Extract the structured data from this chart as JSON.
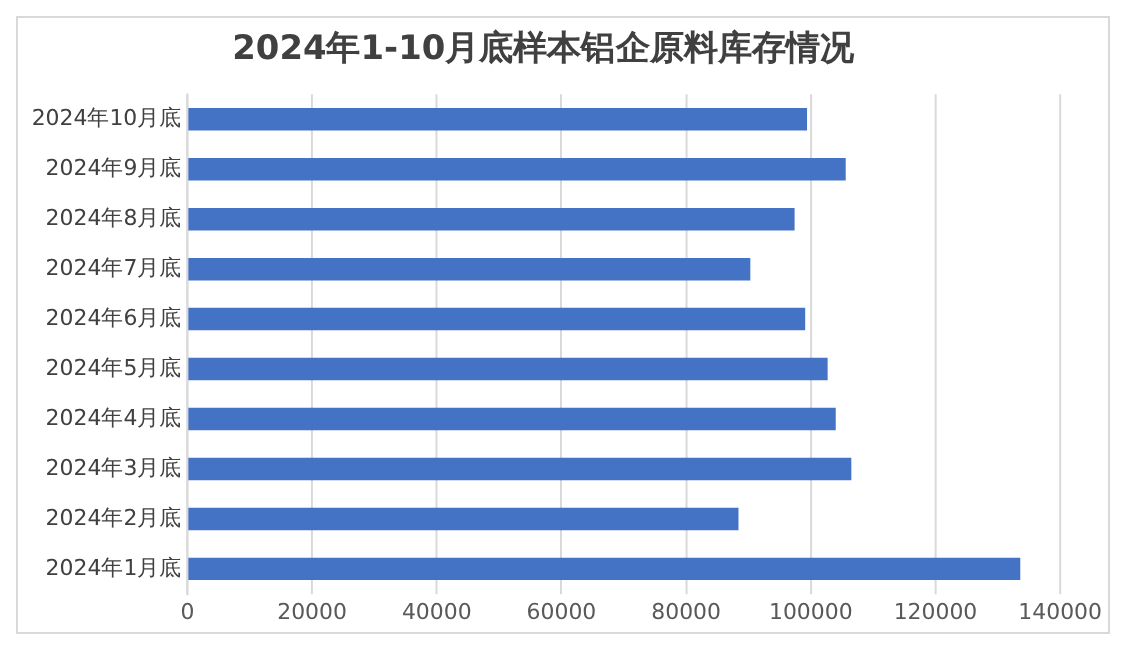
{
  "chart_data": {
    "type": "bar",
    "orientation": "horizontal",
    "title": "2024年1-10月底样本铝企原料库存情况",
    "categories": [
      "2024年10月底",
      "2024年9月底",
      "2024年8月底",
      "2024年7月底",
      "2024年6月底",
      "2024年5月底",
      "2024年4月底",
      "2024年3月底",
      "2024年2月底",
      "2024年1月底"
    ],
    "values": [
      99400,
      105600,
      97400,
      90300,
      99100,
      102700,
      104000,
      106500,
      88400,
      133600
    ],
    "color": "#4472c4",
    "xlim": [
      0,
      140000
    ],
    "xticks": [
      0,
      20000,
      40000,
      60000,
      80000,
      100000,
      120000,
      140000
    ],
    "grid": "x",
    "legend": false
  }
}
